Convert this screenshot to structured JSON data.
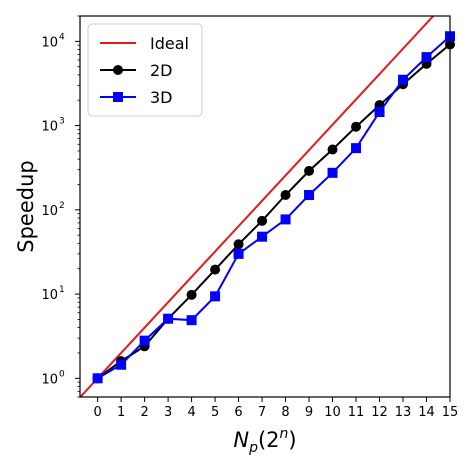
{
  "chart_data": {
    "type": "line",
    "xlabel": "N_p(2^n)",
    "ylabel": "Speedup",
    "x_ticks": [
      0,
      1,
      2,
      3,
      4,
      5,
      6,
      7,
      8,
      9,
      10,
      11,
      12,
      13,
      14,
      15
    ],
    "x_range": [
      -0.75,
      15
    ],
    "y_scale": "log",
    "y_range": [
      0.6,
      20000
    ],
    "y_ticks": [
      {
        "value": 1,
        "base": "10",
        "exp": "0"
      },
      {
        "value": 10,
        "base": "10",
        "exp": "1"
      },
      {
        "value": 100,
        "base": "10",
        "exp": "2"
      },
      {
        "value": 1000,
        "base": "10",
        "exp": "3"
      },
      {
        "value": 10000,
        "base": "10",
        "exp": "4"
      }
    ],
    "grid": false,
    "legend_position": "top-left",
    "series": [
      {
        "name": "Ideal",
        "color": "#e31a1c",
        "marker": "none",
        "x": [
          -0.75,
          15
        ],
        "y": [
          0.5946,
          32768
        ]
      },
      {
        "name": "2D",
        "color": "#000000",
        "marker": "circle",
        "x": [
          0,
          1,
          2,
          3,
          4,
          5,
          6,
          7,
          8,
          9,
          10,
          11,
          12,
          13,
          14,
          15
        ],
        "y": [
          1.0,
          1.6,
          2.4,
          5.1,
          9.8,
          19.5,
          39,
          74,
          150,
          290,
          520,
          970,
          1750,
          3100,
          5400,
          9200
        ]
      },
      {
        "name": "3D",
        "color": "#0000ff",
        "marker": "square",
        "x": [
          0,
          1,
          2,
          3,
          4,
          5,
          6,
          7,
          8,
          9,
          10,
          11,
          12,
          13,
          14,
          15
        ],
        "y": [
          1.0,
          1.45,
          2.8,
          5.1,
          4.9,
          9.4,
          30,
          48,
          77,
          150,
          275,
          540,
          1450,
          3500,
          6500,
          11500
        ]
      }
    ]
  }
}
